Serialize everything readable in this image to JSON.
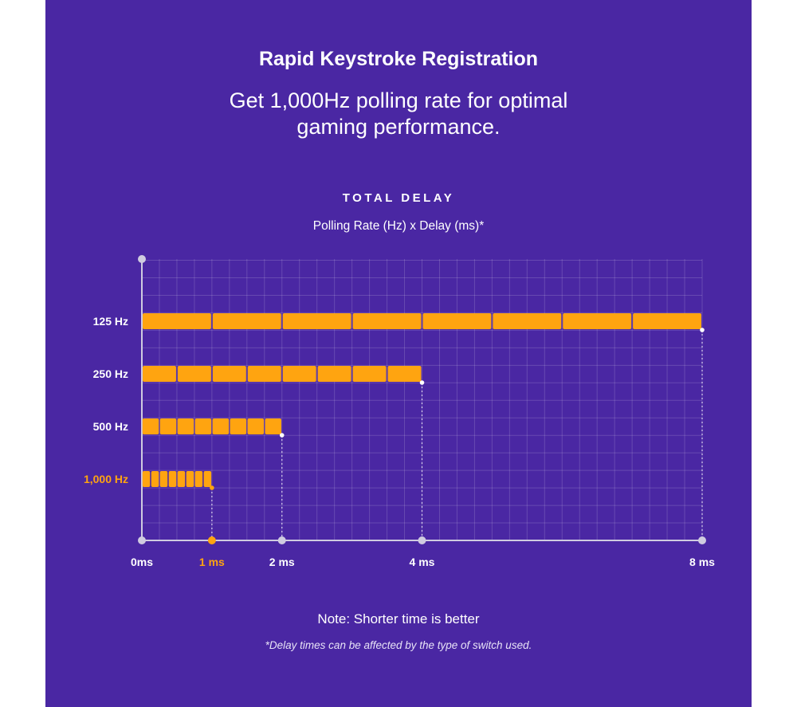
{
  "header": {
    "title": "Rapid Keystroke Registration",
    "subtitle_line1": "Get 1,000Hz polling rate for optimal",
    "subtitle_line2": "gaming performance."
  },
  "chart_heading": "TOTAL DELAY",
  "chart_subheading": "Polling Rate (Hz) x Delay (ms)*",
  "note": "Note: Shorter time is better",
  "footnote": "*Delay times can be affected by the type of switch used.",
  "colors": {
    "background": "#4a27a3",
    "bar": "#ffa410",
    "highlight": "#ffa410",
    "text": "#ffffff",
    "axis": "#cfcbe0"
  },
  "chart_data": {
    "type": "bar",
    "orientation": "horizontal",
    "categories": [
      "125 Hz",
      "250 Hz",
      "500 Hz",
      "1,000 Hz"
    ],
    "series": [
      {
        "values": [
          8,
          4,
          2,
          1
        ],
        "segments": [
          8,
          8,
          8,
          8
        ]
      }
    ],
    "highlight_category": "1,000 Hz",
    "x_ticks": [
      {
        "value": 0,
        "label": "0ms"
      },
      {
        "value": 1,
        "label": "1 ms"
      },
      {
        "value": 2,
        "label": "2 ms"
      },
      {
        "value": 4,
        "label": "4 ms"
      },
      {
        "value": 8,
        "label": "8 ms"
      }
    ],
    "highlight_tick": 1,
    "xlim": [
      0,
      8
    ],
    "grid": true,
    "xlabel": "",
    "ylabel": ""
  }
}
